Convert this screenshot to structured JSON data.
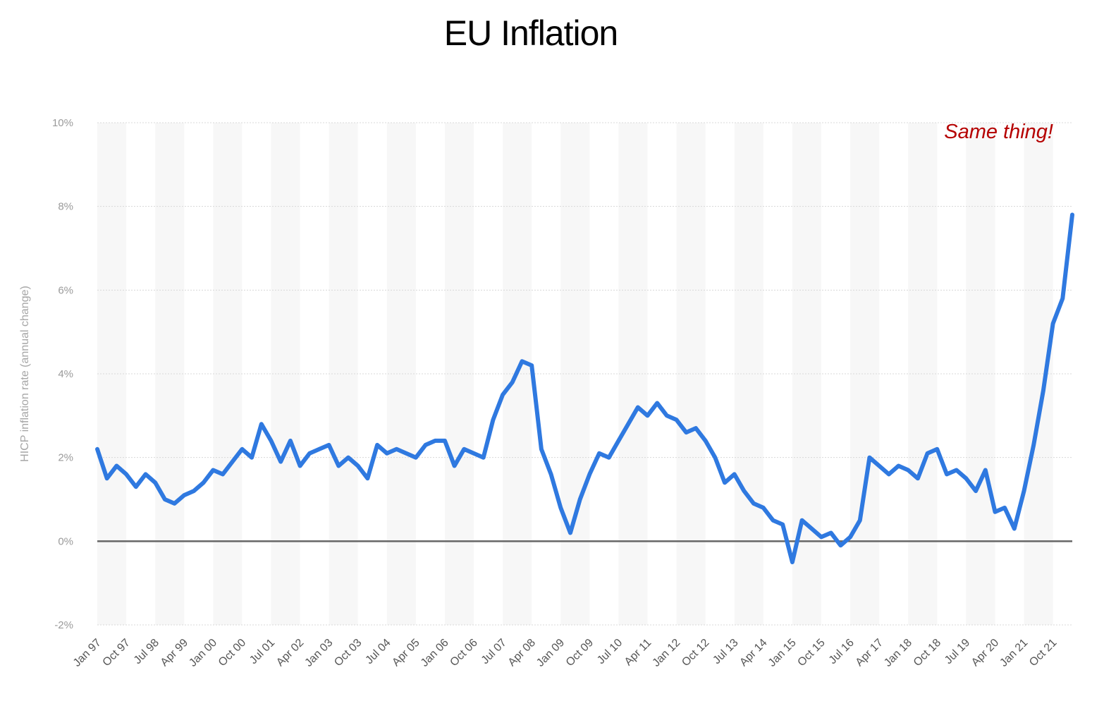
{
  "chart_data": {
    "type": "line",
    "title": "EU Inflation",
    "xlabel": "",
    "ylabel": "HICP inflation rate (annual change)",
    "ylim": [
      -2,
      10
    ],
    "y_ticks": [
      "10%",
      "8%",
      "6%",
      "4%",
      "2%",
      "0%",
      "-2%"
    ],
    "y_tick_values": [
      10,
      8,
      6,
      4,
      2,
      0,
      -2
    ],
    "x_tick_labels": [
      "Jan 97",
      "Oct 97",
      "Jul 98",
      "Apr 99",
      "Jan 00",
      "Oct 00",
      "Jul 01",
      "Apr 02",
      "Jan 03",
      "Oct 03",
      "Jul 04",
      "Apr 05",
      "Jan 06",
      "Oct 06",
      "Jul 07",
      "Apr 08",
      "Jan 09",
      "Oct 09",
      "Jul 10",
      "Apr 11",
      "Jan 12",
      "Oct 12",
      "Jul 13",
      "Apr 14",
      "Jan 15",
      "Oct 15",
      "Jul 16",
      "Apr 17",
      "Jan 18",
      "Oct 18",
      "Jul 19",
      "Apr 20",
      "Jan 21",
      "Oct 21"
    ],
    "annotation": "Same thing!",
    "grid": true,
    "zero_line": true,
    "line_color": "#2f79e0",
    "series": [
      {
        "x": [
          "Jan 97",
          "Apr 97",
          "Jul 97",
          "Oct 97",
          "Jan 98",
          "Apr 98",
          "Jul 98",
          "Oct 98",
          "Jan 99",
          "Apr 99",
          "Jul 99",
          "Oct 99",
          "Jan 00",
          "Apr 00",
          "Jul 00",
          "Oct 00",
          "Jan 01",
          "Apr 01",
          "Jul 01",
          "Oct 01",
          "Jan 02",
          "Apr 02",
          "Jul 02",
          "Oct 02",
          "Jan 03",
          "Apr 03",
          "Jul 03",
          "Oct 03",
          "Jan 04",
          "Apr 04",
          "Jul 04",
          "Oct 04",
          "Jan 05",
          "Apr 05",
          "Jul 05",
          "Oct 05",
          "Jan 06",
          "Apr 06",
          "Jul 06",
          "Oct 06",
          "Jan 07",
          "Apr 07",
          "Jul 07",
          "Oct 07",
          "Jan 08",
          "Apr 08",
          "Jul 08",
          "Oct 08",
          "Jan 09",
          "Apr 09",
          "Jul 09",
          "Oct 09",
          "Jan 10",
          "Apr 10",
          "Jul 10",
          "Oct 10",
          "Jan 11",
          "Apr 11",
          "Jul 11",
          "Oct 11",
          "Jan 12",
          "Apr 12",
          "Jul 12",
          "Oct 12",
          "Jan 13",
          "Apr 13",
          "Jul 13",
          "Oct 13",
          "Jan 14",
          "Apr 14",
          "Jul 14",
          "Oct 14",
          "Jan 15",
          "Apr 15",
          "Jul 15",
          "Oct 15",
          "Jan 16",
          "Apr 16",
          "Jul 16",
          "Oct 16",
          "Jan 17",
          "Apr 17",
          "Jul 17",
          "Oct 17",
          "Jan 18",
          "Apr 18",
          "Jul 18",
          "Oct 18",
          "Jan 19",
          "Apr 19",
          "Jul 19",
          "Oct 19",
          "Jan 20",
          "Apr 20",
          "Jul 20",
          "Oct 20",
          "Jan 21",
          "Apr 21",
          "Jul 21",
          "Oct 21",
          "Jan 22",
          "Apr 22"
        ],
        "values": [
          2.2,
          1.5,
          1.8,
          1.6,
          1.3,
          1.6,
          1.4,
          1.0,
          0.9,
          1.1,
          1.2,
          1.4,
          1.7,
          1.6,
          1.9,
          2.2,
          2.0,
          2.8,
          2.4,
          1.9,
          2.4,
          1.8,
          2.1,
          2.2,
          2.3,
          1.8,
          2.0,
          1.8,
          1.5,
          2.3,
          2.1,
          2.2,
          2.1,
          2.0,
          2.3,
          2.4,
          2.4,
          1.8,
          2.2,
          2.1,
          2.0,
          2.9,
          3.5,
          3.8,
          4.3,
          4.2,
          2.2,
          1.6,
          0.8,
          0.2,
          1.0,
          1.6,
          2.1,
          2.0,
          2.4,
          2.8,
          3.2,
          3.0,
          3.3,
          3.0,
          2.9,
          2.6,
          2.7,
          2.4,
          2.0,
          1.4,
          1.6,
          1.2,
          0.9,
          0.8,
          0.5,
          0.4,
          -0.5,
          0.5,
          0.3,
          0.1,
          0.2,
          -0.1,
          0.1,
          0.5,
          2.0,
          1.8,
          1.6,
          1.8,
          1.7,
          1.5,
          2.1,
          2.2,
          1.6,
          1.7,
          1.5,
          1.2,
          1.7,
          0.7,
          0.8,
          0.3,
          1.2,
          2.3,
          3.6,
          5.2,
          5.8,
          7.8
        ]
      }
    ]
  }
}
